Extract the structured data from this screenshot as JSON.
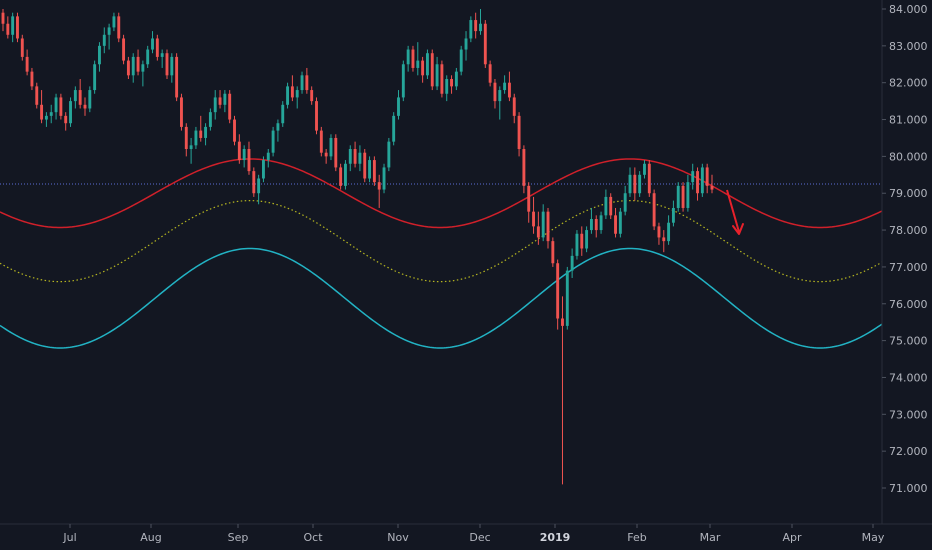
{
  "chart_data": {
    "type": "candlestick",
    "y_range": [
      70.0,
      84.2
    ],
    "y_ticks": [
      "84.000",
      "83.000",
      "82.000",
      "81.000",
      "80.000",
      "79.000",
      "78.000",
      "77.000",
      "76.000",
      "75.000",
      "74.000",
      "73.000",
      "72.000",
      "71.000"
    ],
    "x_ticks": [
      {
        "label": "Jul",
        "bold": false
      },
      {
        "label": "Aug",
        "bold": false
      },
      {
        "label": "Sep",
        "bold": false
      },
      {
        "label": "Oct",
        "bold": false
      },
      {
        "label": "Nov",
        "bold": false
      },
      {
        "label": "Dec",
        "bold": false
      },
      {
        "label": "2019",
        "bold": true
      },
      {
        "label": "Feb",
        "bold": false
      },
      {
        "label": "Mar",
        "bold": false
      },
      {
        "label": "Apr",
        "bold": false
      },
      {
        "label": "May",
        "bold": false
      }
    ],
    "horizontal_line": {
      "value": 79.25,
      "color": "#5b6cd6"
    },
    "cycle_curves": [
      {
        "mid": 79.0,
        "amplitude": 0.93,
        "color": "#d0202a",
        "style": "solid"
      },
      {
        "mid": 77.7,
        "amplitude": 1.1,
        "color": "#b5b520",
        "style": "dotted"
      },
      {
        "mid": 76.15,
        "amplitude": 1.35,
        "color": "#22b3c4",
        "style": "solid"
      }
    ],
    "candles": [
      [
        83.9,
        84.0,
        83.4,
        83.6
      ],
      [
        83.6,
        83.8,
        83.2,
        83.3
      ],
      [
        83.3,
        83.9,
        83.1,
        83.8
      ],
      [
        83.8,
        83.9,
        83.1,
        83.2
      ],
      [
        83.2,
        83.3,
        82.6,
        82.7
      ],
      [
        82.7,
        82.9,
        82.2,
        82.3
      ],
      [
        82.3,
        82.4,
        81.8,
        81.9
      ],
      [
        81.9,
        82.0,
        81.3,
        81.4
      ],
      [
        81.4,
        81.8,
        80.9,
        81.0
      ],
      [
        81.0,
        81.2,
        80.8,
        81.1
      ],
      [
        81.1,
        81.4,
        80.9,
        81.2
      ],
      [
        81.2,
        81.7,
        81.0,
        81.6
      ],
      [
        81.6,
        81.7,
        81.0,
        81.1
      ],
      [
        81.1,
        81.2,
        80.7,
        80.9
      ],
      [
        80.9,
        81.6,
        80.8,
        81.5
      ],
      [
        81.5,
        81.9,
        81.3,
        81.8
      ],
      [
        81.8,
        82.1,
        81.3,
        81.4
      ],
      [
        81.4,
        81.6,
        81.1,
        81.3
      ],
      [
        81.3,
        81.9,
        81.2,
        81.8
      ],
      [
        81.8,
        82.6,
        81.7,
        82.5
      ],
      [
        82.5,
        83.1,
        82.3,
        83.0
      ],
      [
        83.0,
        83.5,
        82.8,
        83.3
      ],
      [
        83.3,
        83.6,
        82.9,
        83.5
      ],
      [
        83.5,
        83.9,
        83.4,
        83.8
      ],
      [
        83.8,
        83.9,
        83.1,
        83.2
      ],
      [
        83.2,
        83.3,
        82.5,
        82.6
      ],
      [
        82.6,
        82.7,
        82.1,
        82.2
      ],
      [
        82.2,
        82.8,
        82.0,
        82.7
      ],
      [
        82.7,
        82.9,
        82.2,
        82.3
      ],
      [
        82.3,
        82.6,
        81.9,
        82.5
      ],
      [
        82.5,
        83.0,
        82.4,
        82.9
      ],
      [
        82.9,
        83.4,
        82.8,
        83.2
      ],
      [
        83.2,
        83.3,
        82.6,
        82.7
      ],
      [
        82.7,
        82.9,
        82.4,
        82.8
      ],
      [
        82.8,
        82.9,
        82.1,
        82.2
      ],
      [
        82.2,
        82.8,
        82.0,
        82.7
      ],
      [
        82.7,
        82.8,
        81.5,
        81.6
      ],
      [
        81.6,
        81.7,
        80.7,
        80.8
      ],
      [
        80.8,
        80.9,
        80.0,
        80.2
      ],
      [
        80.2,
        80.5,
        79.8,
        80.3
      ],
      [
        80.3,
        80.8,
        80.2,
        80.7
      ],
      [
        80.7,
        81.1,
        80.4,
        80.5
      ],
      [
        80.5,
        80.9,
        80.3,
        80.8
      ],
      [
        80.8,
        81.3,
        80.7,
        81.2
      ],
      [
        81.2,
        81.8,
        81.0,
        81.6
      ],
      [
        81.6,
        81.8,
        81.3,
        81.4
      ],
      [
        81.4,
        81.8,
        81.2,
        81.7
      ],
      [
        81.7,
        81.8,
        80.9,
        81.0
      ],
      [
        81.0,
        81.1,
        80.3,
        80.4
      ],
      [
        80.4,
        80.6,
        79.8,
        79.9
      ],
      [
        79.9,
        80.3,
        79.7,
        80.2
      ],
      [
        80.2,
        80.4,
        79.5,
        79.6
      ],
      [
        79.6,
        79.7,
        78.9,
        79.0
      ],
      [
        79.0,
        79.5,
        78.7,
        79.4
      ],
      [
        79.4,
        80.0,
        79.3,
        79.9
      ],
      [
        79.9,
        80.2,
        79.7,
        80.1
      ],
      [
        80.1,
        80.8,
        80.0,
        80.7
      ],
      [
        80.7,
        81.0,
        80.4,
        80.9
      ],
      [
        80.9,
        81.5,
        80.8,
        81.4
      ],
      [
        81.4,
        82.0,
        81.3,
        81.9
      ],
      [
        81.9,
        82.2,
        81.5,
        81.6
      ],
      [
        81.6,
        81.9,
        81.3,
        81.8
      ],
      [
        81.8,
        82.3,
        81.7,
        82.2
      ],
      [
        82.2,
        82.4,
        81.7,
        81.8
      ],
      [
        81.8,
        81.9,
        81.4,
        81.5
      ],
      [
        81.5,
        81.6,
        80.6,
        80.7
      ],
      [
        80.7,
        80.8,
        80.0,
        80.1
      ],
      [
        80.1,
        80.2,
        79.8,
        80.0
      ],
      [
        80.0,
        80.6,
        79.9,
        80.5
      ],
      [
        80.5,
        80.6,
        79.6,
        79.7
      ],
      [
        79.7,
        79.8,
        79.1,
        79.2
      ],
      [
        79.2,
        79.9,
        79.1,
        79.8
      ],
      [
        79.8,
        80.3,
        79.6,
        80.2
      ],
      [
        80.2,
        80.4,
        79.7,
        79.8
      ],
      [
        79.8,
        80.3,
        79.6,
        80.1
      ],
      [
        80.1,
        80.2,
        79.3,
        79.4
      ],
      [
        79.4,
        80.0,
        79.3,
        79.9
      ],
      [
        79.9,
        80.0,
        79.2,
        79.3
      ],
      [
        79.3,
        79.5,
        78.6,
        79.1
      ],
      [
        79.1,
        79.8,
        79.0,
        79.7
      ],
      [
        79.7,
        80.5,
        79.6,
        80.4
      ],
      [
        80.4,
        81.2,
        80.3,
        81.1
      ],
      [
        81.1,
        81.8,
        81.0,
        81.6
      ],
      [
        81.6,
        82.6,
        81.5,
        82.5
      ],
      [
        82.5,
        83.0,
        82.3,
        82.9
      ],
      [
        82.9,
        83.0,
        82.3,
        82.4
      ],
      [
        82.4,
        83.1,
        82.2,
        82.6
      ],
      [
        82.6,
        82.7,
        82.0,
        82.2
      ],
      [
        82.2,
        82.9,
        82.1,
        82.8
      ],
      [
        82.8,
        82.9,
        81.8,
        81.9
      ],
      [
        81.9,
        82.7,
        81.8,
        82.5
      ],
      [
        82.5,
        82.6,
        81.6,
        81.7
      ],
      [
        81.7,
        82.2,
        81.5,
        82.1
      ],
      [
        82.1,
        82.2,
        81.7,
        81.9
      ],
      [
        81.9,
        82.4,
        81.8,
        82.3
      ],
      [
        82.3,
        83.0,
        82.2,
        82.9
      ],
      [
        82.9,
        83.4,
        82.6,
        83.2
      ],
      [
        83.2,
        83.8,
        83.1,
        83.7
      ],
      [
        83.7,
        83.9,
        83.2,
        83.4
      ],
      [
        83.4,
        84.0,
        83.3,
        83.6
      ],
      [
        83.6,
        83.7,
        82.4,
        82.5
      ],
      [
        82.5,
        82.6,
        81.9,
        82.0
      ],
      [
        82.0,
        82.1,
        81.3,
        81.5
      ],
      [
        81.5,
        81.9,
        81.0,
        81.8
      ],
      [
        81.8,
        82.2,
        81.7,
        82.0
      ],
      [
        82.0,
        82.3,
        81.5,
        81.6
      ],
      [
        81.6,
        81.7,
        80.9,
        81.1
      ],
      [
        81.1,
        81.2,
        80.0,
        80.2
      ],
      [
        80.2,
        80.3,
        79.0,
        79.2
      ],
      [
        79.2,
        79.3,
        78.2,
        78.5
      ],
      [
        78.5,
        78.9,
        77.9,
        78.1
      ],
      [
        78.1,
        78.5,
        77.6,
        77.8
      ],
      [
        77.8,
        78.7,
        77.7,
        78.5
      ],
      [
        78.5,
        78.6,
        77.5,
        77.7
      ],
      [
        77.7,
        77.8,
        77.0,
        77.1
      ],
      [
        77.1,
        77.2,
        75.3,
        75.6
      ],
      [
        75.6,
        76.2,
        71.1,
        75.4
      ],
      [
        75.4,
        77.0,
        75.3,
        76.9
      ],
      [
        76.9,
        77.5,
        76.7,
        77.3
      ],
      [
        77.3,
        78.0,
        77.2,
        77.9
      ],
      [
        77.9,
        78.1,
        77.3,
        77.5
      ],
      [
        77.5,
        78.1,
        77.4,
        78.0
      ],
      [
        78.0,
        78.6,
        77.9,
        78.3
      ],
      [
        78.3,
        78.4,
        77.8,
        78.0
      ],
      [
        78.0,
        78.5,
        77.9,
        78.4
      ],
      [
        78.4,
        79.1,
        78.3,
        78.9
      ],
      [
        78.9,
        79.0,
        78.3,
        78.4
      ],
      [
        78.4,
        78.6,
        77.8,
        77.9
      ],
      [
        77.9,
        78.6,
        77.8,
        78.5
      ],
      [
        78.5,
        79.2,
        78.4,
        79.0
      ],
      [
        79.0,
        79.7,
        78.9,
        79.5
      ],
      [
        79.5,
        79.7,
        78.8,
        79.0
      ],
      [
        79.0,
        79.6,
        78.9,
        79.5
      ],
      [
        79.5,
        79.9,
        79.4,
        79.8
      ],
      [
        79.8,
        79.9,
        78.9,
        79.0
      ],
      [
        79.0,
        79.1,
        78.0,
        78.1
      ],
      [
        78.1,
        78.2,
        77.6,
        77.8
      ],
      [
        77.8,
        78.0,
        77.4,
        77.7
      ],
      [
        77.7,
        78.4,
        77.6,
        78.2
      ],
      [
        78.2,
        78.8,
        78.1,
        78.6
      ],
      [
        78.6,
        79.3,
        78.5,
        79.2
      ],
      [
        79.2,
        79.3,
        78.5,
        78.6
      ],
      [
        78.6,
        79.5,
        78.5,
        79.3
      ],
      [
        79.3,
        79.8,
        79.1,
        79.6
      ],
      [
        79.6,
        79.7,
        78.8,
        79.0
      ],
      [
        79.0,
        79.8,
        78.9,
        79.7
      ],
      [
        79.7,
        79.8,
        79.0,
        79.2
      ],
      [
        79.2,
        79.5,
        79.0,
        79.1
      ]
    ],
    "bull_color": "#26a69a",
    "bear_color": "#ef5350",
    "annotation_arrow": {
      "color": "#e8212b",
      "direction": "down"
    }
  }
}
